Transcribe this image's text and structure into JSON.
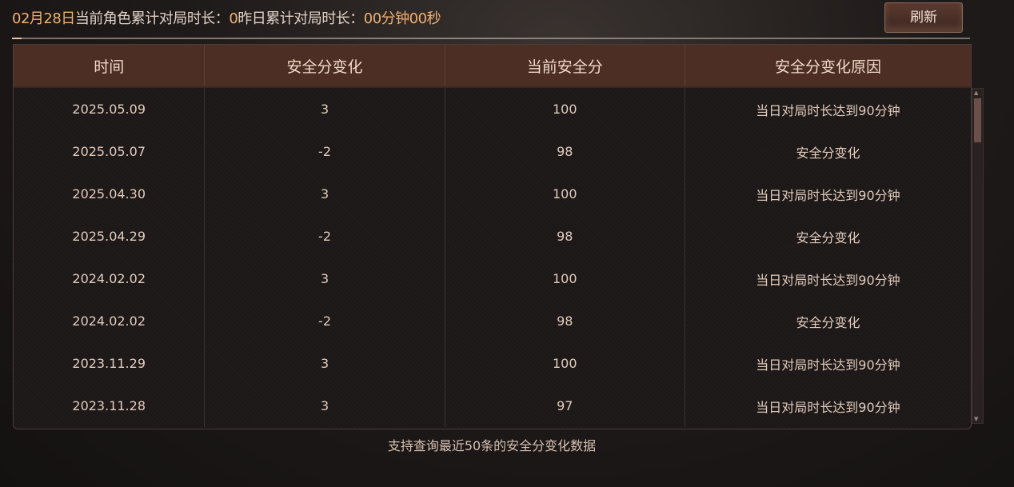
{
  "header": {
    "date": "02月28日",
    "current_label": "当前角色累计对局时长：",
    "current_value": "0",
    "yesterday_label": "昨日累计对局时长：",
    "yesterday_value": "00分钟00秒",
    "refresh_label": "刷新"
  },
  "table": {
    "columns": [
      "时间",
      "安全分变化",
      "当前安全分",
      "安全分变化原因"
    ],
    "rows": [
      [
        "2025.05.09",
        "3",
        "100",
        "当日对局时长达到90分钟"
      ],
      [
        "2025.05.07",
        "-2",
        "98",
        "安全分变化"
      ],
      [
        "2025.04.30",
        "3",
        "100",
        "当日对局时长达到90分钟"
      ],
      [
        "2025.04.29",
        "-2",
        "98",
        "安全分变化"
      ],
      [
        "2024.02.02",
        "3",
        "100",
        "当日对局时长达到90分钟"
      ],
      [
        "2024.02.02",
        "-2",
        "98",
        "安全分变化"
      ],
      [
        "2023.11.29",
        "3",
        "100",
        "当日对局时长达到90分钟"
      ],
      [
        "2023.11.28",
        "3",
        "97",
        "当日对局时长达到90分钟"
      ]
    ]
  },
  "footer": "支持查询最近50条的安全分变化数据",
  "colors": {
    "accent": "#f0b072",
    "header_bg": "#4c2e25"
  }
}
